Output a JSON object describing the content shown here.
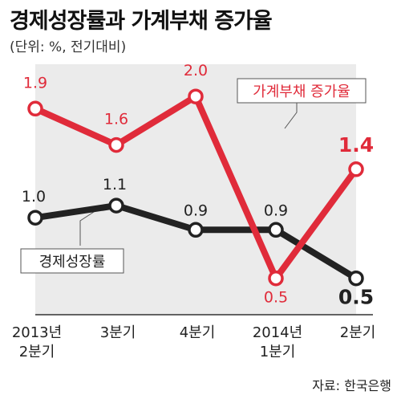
{
  "title": "경제성장률과 가계부채 증가율",
  "subtitle": "(단위: %, 전기대비)",
  "source": "자료: 한국은행",
  "colors": {
    "household": "#e02b3a",
    "growth": "#222222",
    "plot_bg": "#ebebeb"
  },
  "chart_data": {
    "type": "line",
    "categories": [
      [
        "2013년",
        "2분기"
      ],
      [
        "3분기"
      ],
      [
        "4분기"
      ],
      [
        "2014년",
        "1분기"
      ],
      [
        "2분기"
      ]
    ],
    "series": [
      {
        "name": "가계부채 증가율",
        "values": [
          1.9,
          1.6,
          2.0,
          0.5,
          1.4
        ],
        "labels": [
          "1.9",
          "1.6",
          "2.0",
          "0.5",
          "1.4"
        ]
      },
      {
        "name": "경제성장률",
        "values": [
          1.0,
          1.1,
          0.9,
          0.9,
          0.5
        ],
        "labels": [
          "1.0",
          "1.1",
          "0.9",
          "0.9",
          "0.5"
        ]
      }
    ],
    "ylim": [
      0.2,
      2.2
    ],
    "grid": false
  }
}
